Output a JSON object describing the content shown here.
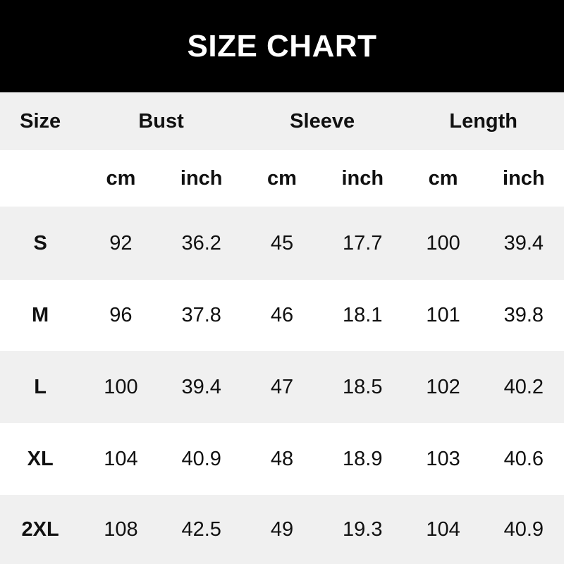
{
  "title": "SIZE CHART",
  "header": {
    "size": "Size",
    "groups": [
      "Bust",
      "Sleeve",
      "Length"
    ]
  },
  "units": [
    "cm",
    "inch",
    "cm",
    "inch",
    "cm",
    "inch"
  ],
  "rows": [
    {
      "size": "S",
      "values": [
        "92",
        "36.2",
        "45",
        "17.7",
        "100",
        "39.4"
      ]
    },
    {
      "size": "M",
      "values": [
        "96",
        "37.8",
        "46",
        "18.1",
        "101",
        "39.8"
      ]
    },
    {
      "size": "L",
      "values": [
        "100",
        "39.4",
        "47",
        "18.5",
        "102",
        "40.2"
      ]
    },
    {
      "size": "XL",
      "values": [
        "104",
        "40.9",
        "48",
        "18.9",
        "103",
        "40.6"
      ]
    },
    {
      "size": "2XL",
      "values": [
        "108",
        "42.5",
        "49",
        "19.3",
        "104",
        "40.9"
      ]
    }
  ],
  "colors": {
    "title_bg": "#000000",
    "title_text": "#ffffff",
    "stripe": "#f0f0f0"
  }
}
